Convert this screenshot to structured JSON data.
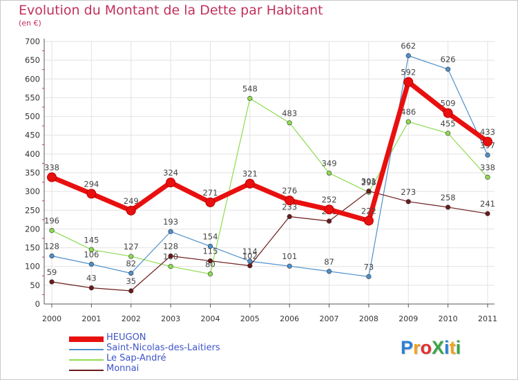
{
  "title": "Evolution du Montant de la Dette par Habitant",
  "subtitle": "(en €)",
  "logo": {
    "text": "ProXiti",
    "colors": [
      "#2a7fd4",
      "#f2a21e",
      "#e2312d",
      "#3aa64a",
      "#2a7fd4",
      "#f2a21e",
      "#3aa64a"
    ]
  },
  "chart_data": {
    "type": "line",
    "title": "Evolution du Montant de la Dette par Habitant",
    "subtitle": "(en €)",
    "x": [
      "2000",
      "2001",
      "2002",
      "2003",
      "2004",
      "2005",
      "2006",
      "2007",
      "2008",
      "2009",
      "2010",
      "2011"
    ],
    "ylim": [
      0,
      700
    ],
    "yticks": [
      0,
      50,
      100,
      150,
      200,
      250,
      300,
      350,
      400,
      450,
      500,
      550,
      600,
      650,
      700
    ],
    "grid": true,
    "legend_position": "bottom-left",
    "series": [
      {
        "name": "HEUGON",
        "color": "#e8100f",
        "values": [
          338,
          294,
          249,
          324,
          271,
          321,
          276,
          252,
          222,
          592,
          509,
          433
        ]
      },
      {
        "name": "Saint-Nicolas-des-Laitiers",
        "color": "#4d8fcb",
        "values": [
          128,
          106,
          82,
          193,
          154,
          114,
          101,
          87,
          73,
          662,
          626,
          397
        ]
      },
      {
        "name": "Le Sap-André",
        "color": "#8ddb4f",
        "values": [
          196,
          145,
          127,
          100,
          80,
          548,
          483,
          349,
          298,
          486,
          455,
          338
        ]
      },
      {
        "name": "Monnai",
        "color": "#6b1a1a",
        "values": [
          59,
          43,
          35,
          128,
          115,
          102,
          233,
          221,
          301,
          273,
          258,
          241
        ]
      }
    ]
  }
}
